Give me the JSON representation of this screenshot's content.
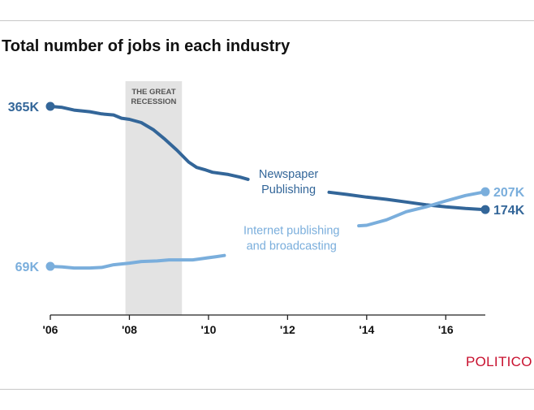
{
  "title": "Total number of jobs in each industry",
  "brand": "POLITICO",
  "chart_data": {
    "type": "line",
    "title": "Total number of jobs in each industry",
    "xlabel": "",
    "ylabel": "",
    "x_ticks": [
      {
        "value": 2006,
        "label": "'06"
      },
      {
        "value": 2008,
        "label": "'08"
      },
      {
        "value": 2010,
        "label": "'10"
      },
      {
        "value": 2012,
        "label": "'12"
      },
      {
        "value": 2014,
        "label": "'14"
      },
      {
        "value": 2016,
        "label": "'16"
      }
    ],
    "xlim": [
      2006,
      2017
    ],
    "ylim": [
      0,
      380
    ],
    "grid": false,
    "legend": "none",
    "shaded_band": {
      "label_line1": "THE GREAT",
      "label_line2": "RECESSION",
      "x_start": 2007.9,
      "x_end": 2009.33
    },
    "series": [
      {
        "name": "Newspaper Publishing",
        "label_line1": "Newspaper",
        "label_line2": "Publishing",
        "color": "#336699",
        "start_label": "365K",
        "end_label": "174K",
        "segments": [
          [
            [
              2006,
              365
            ],
            [
              2006.3,
              363
            ],
            [
              2006.6,
              358
            ],
            [
              2007,
              355
            ],
            [
              2007.3,
              351
            ],
            [
              2007.6,
              349
            ],
            [
              2007.8,
              343
            ],
            [
              2008,
              341
            ],
            [
              2008.3,
              335
            ],
            [
              2008.6,
              322
            ],
            [
              2008.9,
              304
            ],
            [
              2009.2,
              284
            ],
            [
              2009.5,
              262
            ],
            [
              2009.7,
              252
            ],
            [
              2009.9,
              248
            ],
            [
              2010.1,
              243
            ],
            [
              2010.5,
              239
            ],
            [
              2010.8,
              234
            ],
            [
              2011,
              230
            ]
          ],
          [
            [
              2013.05,
              206
            ],
            [
              2013.5,
              202
            ],
            [
              2014,
              197
            ],
            [
              2014.5,
              193
            ],
            [
              2015,
              188
            ],
            [
              2015.5,
              183
            ],
            [
              2016,
              179
            ],
            [
              2016.5,
              176
            ],
            [
              2017,
              174
            ]
          ]
        ]
      },
      {
        "name": "Internet publishing and broadcasting",
        "label_line1": "Internet publishing",
        "label_line2": "and broadcasting",
        "color": "#7aaedc",
        "start_label": "69K",
        "end_label": "207K",
        "segments": [
          [
            [
              2006,
              69
            ],
            [
              2006.3,
              68
            ],
            [
              2006.6,
              66
            ],
            [
              2007,
              66
            ],
            [
              2007.3,
              67
            ],
            [
              2007.6,
              72
            ],
            [
              2008,
              75
            ],
            [
              2008.3,
              78
            ],
            [
              2008.7,
              79
            ],
            [
              2009,
              81
            ],
            [
              2009.3,
              81
            ],
            [
              2009.6,
              81
            ],
            [
              2009.9,
              84
            ],
            [
              2010.2,
              87
            ],
            [
              2010.4,
              89
            ]
          ],
          [
            [
              2013.8,
              144
            ],
            [
              2014,
              145
            ],
            [
              2014.5,
              155
            ],
            [
              2015,
              170
            ],
            [
              2015.5,
              179
            ],
            [
              2016,
              190
            ],
            [
              2016.5,
              200
            ],
            [
              2017,
              207
            ]
          ]
        ]
      }
    ]
  }
}
